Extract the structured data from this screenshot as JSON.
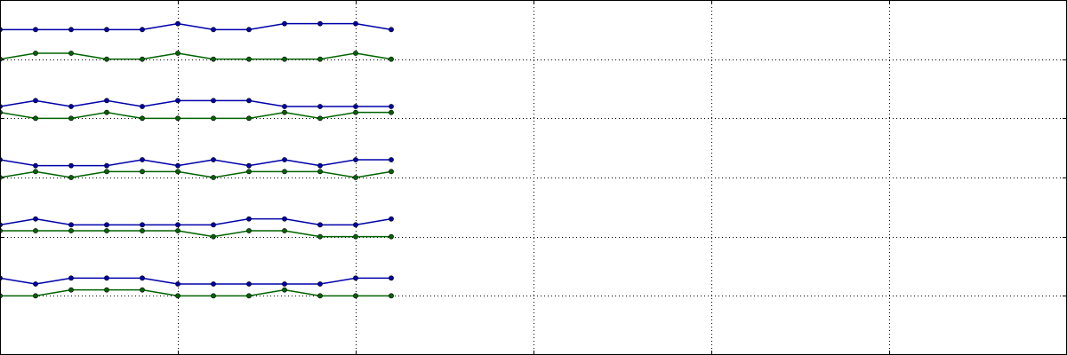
{
  "chart_data": {
    "type": "line",
    "title": "",
    "xlabel": "",
    "ylabel": "",
    "xlim": [
      0,
      60
    ],
    "ylim": [
      0,
      6
    ],
    "x_gridlines": [
      10,
      20,
      30,
      40,
      50
    ],
    "y_gridlines": [
      1,
      2,
      3,
      4,
      5
    ],
    "grid": true,
    "x": [
      0,
      2,
      4,
      6,
      8,
      10,
      12,
      14,
      16,
      18,
      20,
      22
    ],
    "series": [
      {
        "color": "#0000aa",
        "groups": [
          [
            5.5,
            5.5,
            5.5,
            5.5,
            5.5,
            5.6,
            5.5,
            5.5,
            5.6,
            5.6,
            5.6,
            5.5
          ],
          [
            4.2,
            4.3,
            4.2,
            4.3,
            4.2,
            4.3,
            4.3,
            4.3,
            4.2,
            4.2,
            4.2,
            4.2
          ],
          [
            3.3,
            3.2,
            3.2,
            3.2,
            3.3,
            3.2,
            3.3,
            3.2,
            3.3,
            3.2,
            3.3,
            3.3
          ],
          [
            2.2,
            2.3,
            2.2,
            2.2,
            2.2,
            2.2,
            2.2,
            2.3,
            2.3,
            2.2,
            2.2,
            2.3
          ],
          [
            1.3,
            1.2,
            1.3,
            1.3,
            1.3,
            1.2,
            1.2,
            1.2,
            1.2,
            1.2,
            1.3,
            1.3
          ]
        ]
      },
      {
        "color": "#006400",
        "groups": [
          [
            5.0,
            5.1,
            5.1,
            5.0,
            5.0,
            5.1,
            5.0,
            5.0,
            5.0,
            5.0,
            5.1,
            5.0
          ],
          [
            4.1,
            4.0,
            4.0,
            4.1,
            4.0,
            4.0,
            4.0,
            4.0,
            4.1,
            4.0,
            4.1,
            4.1
          ],
          [
            3.0,
            3.1,
            3.0,
            3.1,
            3.1,
            3.1,
            3.0,
            3.1,
            3.1,
            3.1,
            3.0,
            3.1
          ],
          [
            2.1,
            2.1,
            2.1,
            2.1,
            2.1,
            2.1,
            2.0,
            2.1,
            2.1,
            2.0,
            2.0,
            2.0
          ],
          [
            1.0,
            1.0,
            1.1,
            1.1,
            1.1,
            1.0,
            1.0,
            1.0,
            1.1,
            1.0,
            1.0,
            1.0
          ]
        ]
      }
    ]
  }
}
